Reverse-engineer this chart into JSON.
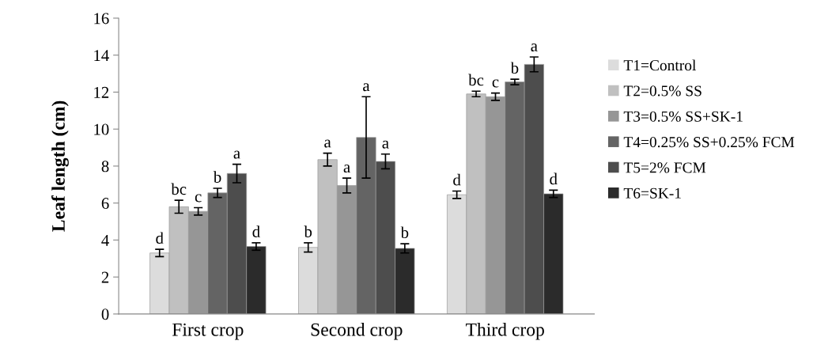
{
  "chart_data": {
    "type": "bar",
    "ylabel": "Leaf length (cm)",
    "categories": [
      "First crop",
      "Second crop",
      "Third crop"
    ],
    "ylim": [
      0,
      16
    ],
    "yticks": [
      0,
      2,
      4,
      6,
      8,
      10,
      12,
      14,
      16
    ],
    "grid": false,
    "legend": "right",
    "series": [
      {
        "name": "T1=Control",
        "color": "#dcdcdc",
        "values": [
          3.3,
          3.6,
          6.45
        ],
        "errors": [
          0.2,
          0.25,
          0.2
        ],
        "value_labels": [
          "d",
          "b",
          "d"
        ]
      },
      {
        "name": "T2=0.5% SS",
        "color": "#c0c0c0",
        "values": [
          5.8,
          8.35,
          11.9
        ],
        "errors": [
          0.35,
          0.35,
          0.15
        ],
        "value_labels": [
          "bc",
          "a",
          "bc"
        ]
      },
      {
        "name": "T3=0.5% SS+SK-1",
        "color": "#969696",
        "values": [
          5.55,
          6.95,
          11.75
        ],
        "errors": [
          0.2,
          0.4,
          0.2
        ],
        "value_labels": [
          "c",
          "a",
          "c"
        ]
      },
      {
        "name": "T4=0.25% SS+0.25% FCM",
        "color": "#646464",
        "values": [
          6.55,
          9.55,
          12.55
        ],
        "errors": [
          0.25,
          2.2,
          0.15
        ],
        "value_labels": [
          "b",
          "a",
          "b"
        ]
      },
      {
        "name": "T5=2% FCM",
        "color": "#4d4d4d",
        "values": [
          7.6,
          8.25,
          13.5
        ],
        "errors": [
          0.5,
          0.4,
          0.4
        ],
        "value_labels": [
          "a",
          "a",
          "a"
        ]
      },
      {
        "name": "T6=SK-1",
        "color": "#2b2b2b",
        "values": [
          3.65,
          3.55,
          6.5
        ],
        "errors": [
          0.2,
          0.25,
          0.2
        ],
        "value_labels": [
          "d",
          "b",
          "d"
        ]
      }
    ]
  }
}
